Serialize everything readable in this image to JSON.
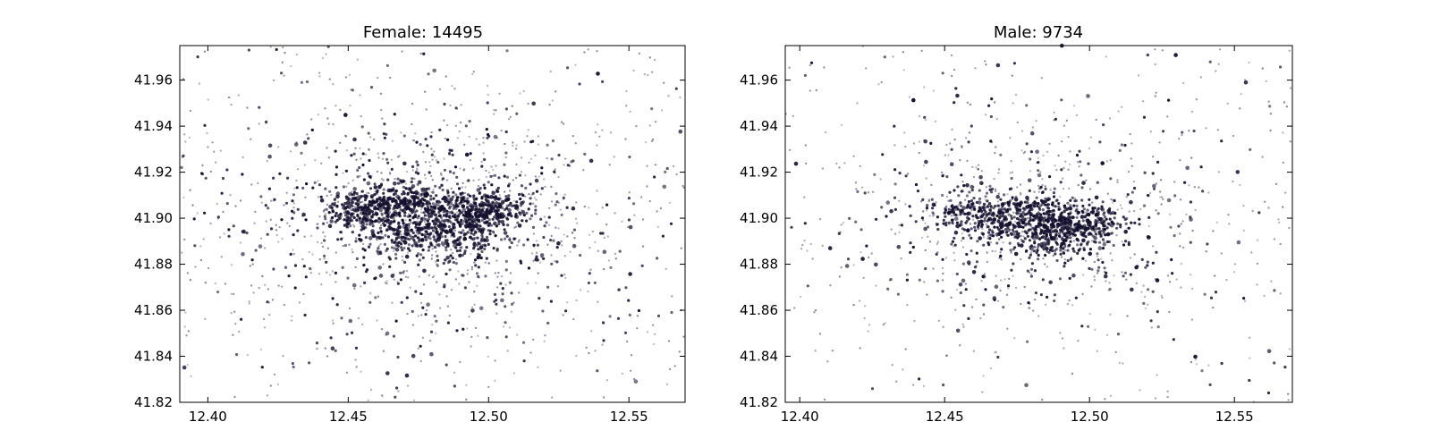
{
  "chart_data": [
    {
      "type": "scatter",
      "title": "Female: 14495",
      "xlabel": "",
      "ylabel": "",
      "xlim": [
        12.39,
        12.57
      ],
      "ylim": [
        41.82,
        41.975
      ],
      "xticks": [
        "12.40",
        "12.45",
        "12.50",
        "12.55"
      ],
      "yticks": [
        "41.82",
        "41.84",
        "41.86",
        "41.88",
        "41.90",
        "41.92",
        "41.94",
        "41.96"
      ],
      "grid": false,
      "marker_color": "#14102e",
      "density": {
        "center": [
          12.48,
          41.9
        ],
        "spread": [
          0.035,
          0.018
        ],
        "cluster_points": [
          [
            12.455,
            41.903
          ],
          [
            12.465,
            41.905
          ],
          [
            12.475,
            41.908
          ],
          [
            12.485,
            41.9
          ],
          [
            12.495,
            41.902
          ],
          [
            12.47,
            41.893
          ],
          [
            12.49,
            41.89
          ],
          [
            12.5,
            41.905
          ]
        ]
      }
    },
    {
      "type": "scatter",
      "title": "Male: 9734",
      "xlabel": "",
      "ylabel": "",
      "xlim": [
        12.395,
        12.57
      ],
      "ylim": [
        41.82,
        41.975
      ],
      "xticks": [
        "12.40",
        "12.45",
        "12.50",
        "12.55"
      ],
      "yticks": [
        "41.82",
        "41.84",
        "41.86",
        "41.88",
        "41.90",
        "41.92",
        "41.94",
        "41.96"
      ],
      "grid": false,
      "marker_color": "#14102e",
      "density": {
        "center": [
          12.48,
          41.897
        ],
        "spread": [
          0.032,
          0.017
        ],
        "cluster_points": [
          [
            12.46,
            41.902
          ],
          [
            12.472,
            41.898
          ],
          [
            12.48,
            41.905
          ],
          [
            12.485,
            41.895
          ],
          [
            12.495,
            41.9
          ],
          [
            12.49,
            41.89
          ],
          [
            12.5,
            41.897
          ]
        ]
      }
    }
  ]
}
